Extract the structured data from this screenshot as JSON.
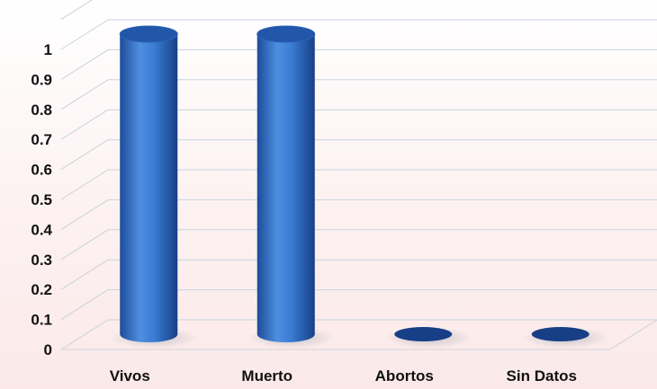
{
  "chart_data": {
    "type": "bar",
    "categories": [
      "Vivos",
      "Muerto",
      "Abortos",
      "Sin Datos"
    ],
    "values": [
      1,
      1,
      0,
      0
    ],
    "ylim": [
      0,
      1.1
    ],
    "yticks": [
      "0",
      "0.1",
      "0.2",
      "0.3",
      "0.4",
      "0.5",
      "0.6",
      "0.7",
      "0.8",
      "0.9",
      "1"
    ],
    "title": "",
    "xlabel": "",
    "ylabel": "",
    "grid": true,
    "style": "3d-cylinder",
    "colors": {
      "bar_light": "#4f8fe0",
      "bar_mid": "#2f6ec8",
      "bar_dark": "#173f86",
      "bar_top": "#2256a8",
      "grid": "#c7d3de"
    }
  }
}
